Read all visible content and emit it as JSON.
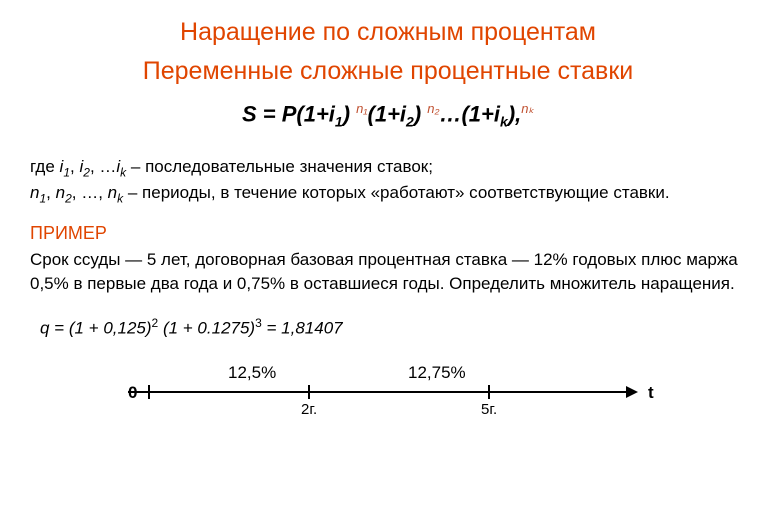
{
  "title1": "Наращение по сложным процентам",
  "title2": "Переменные сложные процентные ставки",
  "formula": {
    "lhs": "S = P(1+i",
    "sub1": "1",
    "close1": ") ",
    "exp1": "n₁",
    "mid1": "(1+i",
    "sub2": "2",
    "close2": ") ",
    "exp2": "n₂",
    "dots": "…(1+i",
    "subk": "k",
    "close3": "),",
    "expk": "nₖ"
  },
  "desc": {
    "line1_pre": "где ",
    "i1": "i",
    "s1": "1",
    "comma1": ", ",
    "i2": "i",
    "s2": "2",
    "comma2": ", …",
    "ik": "i",
    "sk": "k",
    "line1_post": " – последовательные значения ставок;",
    "line2_pre": "",
    "n1": "n",
    "ns1": "1",
    "nc1": ", ",
    "n2": "n",
    "ns2": "2",
    "nc2": ", …, ",
    "nk": "n",
    "nsk": "k",
    "line2_post": " – периоды, в течение которых «работают» соответствующие ставки."
  },
  "example_label": "ПРИМЕР",
  "example_text": "Срок ссуды — 5 лет, договорная базовая процентная ставка — 12% годовых плюс маржа 0,5% в первые два года и 0,75% в оставшиеся годы. Определить множитель наращения.",
  "calc": {
    "pre": "q = (1 + 0,125)",
    "exp1": "2",
    "mid": " (1 + 0.1275)",
    "exp2": "3",
    "post": " = 1,81407"
  },
  "timeline": {
    "label1": "12,5%",
    "label2": "12,75%",
    "zero": "0",
    "t": "t",
    "tick1": "2г.",
    "tick2": "5г."
  },
  "colors": {
    "heading": "#e04500",
    "exponent": "#c05030",
    "text": "#000000",
    "background": "#ffffff"
  }
}
